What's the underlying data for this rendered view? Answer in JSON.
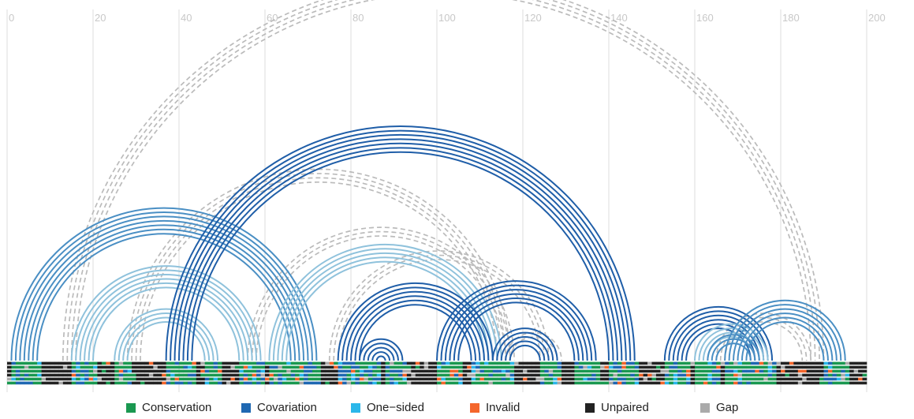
{
  "chart_data": {
    "type": "arc-diagram",
    "x_axis": {
      "ticks": [
        0,
        20,
        40,
        60,
        80,
        100,
        120,
        140,
        160,
        180,
        200
      ],
      "range": [
        0,
        203
      ]
    },
    "grid": true,
    "legend_placement": "bottom",
    "legend": [
      {
        "label": "Conservation",
        "color": "#1a9850"
      },
      {
        "label": "Covariation",
        "color": "#1f68b2"
      },
      {
        "label": "One−sided",
        "color": "#2bb7ea"
      },
      {
        "label": "Invalid",
        "color": "#f4662c"
      },
      {
        "label": "Unpaired",
        "color": "#222222"
      },
      {
        "label": "Gap",
        "color": "#aaaaaa"
      }
    ],
    "arc_colors": {
      "covariation_dark": "#1f5ea8",
      "covariation_mid": "#4a8fc4",
      "one_sided_light": "#8fc2dc",
      "unsupported": "#bbbbbb"
    },
    "helices": [
      {
        "i": 1,
        "j": 72,
        "n": 7,
        "style": "mid"
      },
      {
        "i": 15,
        "j": 59,
        "n": 6,
        "style": "light"
      },
      {
        "i": 25,
        "j": 49,
        "n": 4,
        "style": "light"
      },
      {
        "i": 37,
        "j": 146,
        "n": 7,
        "style": "dark"
      },
      {
        "i": 61,
        "j": 115,
        "n": 5,
        "style": "light"
      },
      {
        "i": 77,
        "j": 113,
        "n": 6,
        "style": "dark"
      },
      {
        "i": 82,
        "j": 92,
        "n": 5,
        "style": "dark"
      },
      {
        "i": 100,
        "j": 137,
        "n": 6,
        "style": "dark"
      },
      {
        "i": 113,
        "j": 128,
        "n": 5,
        "style": "dark"
      },
      {
        "i": 153,
        "j": 178,
        "n": 6,
        "style": "dark"
      },
      {
        "i": 160,
        "j": 177,
        "n": 4,
        "style": "light"
      },
      {
        "i": 163,
        "j": 175,
        "n": 3,
        "style": "mid"
      },
      {
        "i": 167,
        "j": 195,
        "n": 6,
        "style": "mid"
      },
      {
        "i": 13,
        "j": 190,
        "n": 4,
        "style": "dashed"
      },
      {
        "i": 28,
        "j": 117,
        "n": 4,
        "style": "dashed"
      },
      {
        "i": 56,
        "j": 118,
        "n": 3,
        "style": "dashed"
      },
      {
        "i": 75,
        "j": 126,
        "n": 3,
        "style": "dashed"
      },
      {
        "i": 116,
        "j": 129,
        "n": 2,
        "style": "dashed"
      },
      {
        "i": 165,
        "j": 187,
        "n": 3,
        "style": "dashed"
      }
    ],
    "sequence_tracks": 6,
    "sequence_length": 200
  }
}
